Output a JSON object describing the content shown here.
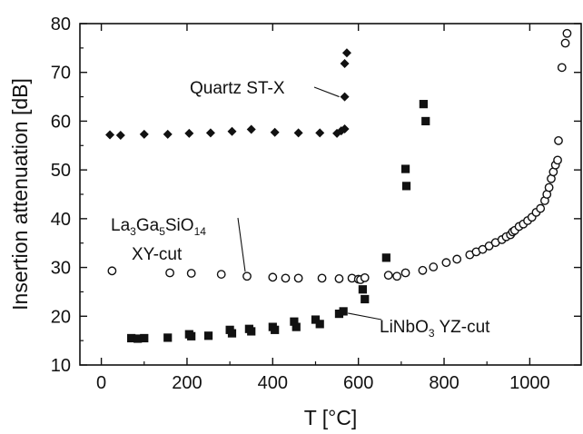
{
  "chart_data": {
    "type": "scatter",
    "xlabel": "T [°C]",
    "ylabel": "Insertion attenuation [dB]",
    "xlim": [
      -50,
      1120
    ],
    "ylim": [
      10,
      80
    ],
    "x_ticks": [
      0,
      200,
      400,
      600,
      800,
      1000
    ],
    "y_ticks": [
      10,
      20,
      30,
      40,
      50,
      60,
      70,
      80
    ],
    "grid": false,
    "legend": "none",
    "series": [
      {
        "marker": "diamond",
        "fill": "filled",
        "color": "#111111",
        "points": [
          [
            20,
            57.2
          ],
          [
            45,
            57.1
          ],
          [
            100,
            57.3
          ],
          [
            155,
            57.3
          ],
          [
            205,
            57.5
          ],
          [
            255,
            57.6
          ],
          [
            305,
            57.9
          ],
          [
            350,
            58.3
          ],
          [
            405,
            57.7
          ],
          [
            460,
            57.6
          ],
          [
            510,
            57.6
          ],
          [
            550,
            57.5
          ],
          [
            560,
            58.0
          ],
          [
            568,
            58.4
          ],
          [
            568,
            65.0
          ],
          [
            568,
            71.8
          ],
          [
            573,
            74.0
          ]
        ]
      },
      {
        "marker": "circle",
        "fill": "open",
        "color": "#111111",
        "points": [
          [
            25,
            29.3
          ],
          [
            160,
            28.9
          ],
          [
            210,
            28.8
          ],
          [
            280,
            28.6
          ],
          [
            340,
            28.2
          ],
          [
            400,
            28.0
          ],
          [
            430,
            27.8
          ],
          [
            460,
            27.8
          ],
          [
            515,
            27.8
          ],
          [
            555,
            27.7
          ],
          [
            585,
            27.8
          ],
          [
            600,
            27.6
          ],
          [
            605,
            27.5
          ],
          [
            615,
            27.9
          ],
          [
            670,
            28.4
          ],
          [
            690,
            28.2
          ],
          [
            710,
            28.9
          ],
          [
            750,
            29.4
          ],
          [
            775,
            30.1
          ],
          [
            805,
            31.0
          ],
          [
            830,
            31.7
          ],
          [
            860,
            32.6
          ],
          [
            875,
            33.2
          ],
          [
            890,
            33.7
          ],
          [
            905,
            34.4
          ],
          [
            920,
            35.1
          ],
          [
            935,
            35.7
          ],
          [
            945,
            36.3
          ],
          [
            955,
            36.7
          ],
          [
            960,
            37.3
          ],
          [
            965,
            37.6
          ],
          [
            975,
            38.4
          ],
          [
            985,
            38.9
          ],
          [
            995,
            39.6
          ],
          [
            1005,
            40.3
          ],
          [
            1015,
            41.3
          ],
          [
            1025,
            42.1
          ],
          [
            1035,
            43.7
          ],
          [
            1040,
            45.0
          ],
          [
            1045,
            46.4
          ],
          [
            1050,
            48.2
          ],
          [
            1055,
            49.6
          ],
          [
            1060,
            51.0
          ],
          [
            1065,
            52.0
          ],
          [
            1067,
            56.0
          ],
          [
            1075,
            71.0
          ],
          [
            1083,
            76.0
          ],
          [
            1087,
            78.0
          ]
        ]
      },
      {
        "marker": "square",
        "fill": "filled",
        "color": "#111111",
        "points": [
          [
            70,
            15.5
          ],
          [
            85,
            15.4
          ],
          [
            100,
            15.5
          ],
          [
            155,
            15.6
          ],
          [
            205,
            16.3
          ],
          [
            210,
            15.9
          ],
          [
            250,
            16.0
          ],
          [
            300,
            17.2
          ],
          [
            305,
            16.5
          ],
          [
            345,
            17.4
          ],
          [
            350,
            16.9
          ],
          [
            400,
            17.8
          ],
          [
            405,
            17.2
          ],
          [
            450,
            18.9
          ],
          [
            455,
            17.8
          ],
          [
            500,
            19.3
          ],
          [
            510,
            18.4
          ],
          [
            555,
            20.5
          ],
          [
            565,
            21.0
          ],
          [
            610,
            25.5
          ],
          [
            615,
            23.5
          ],
          [
            665,
            32.0
          ],
          [
            710,
            50.2
          ],
          [
            712,
            46.7
          ],
          [
            752,
            63.5
          ],
          [
            757,
            60.0
          ]
        ]
      }
    ],
    "annotations": [
      {
        "text": "Quartz ST-X",
        "points_to": [
          568,
          65.0
        ]
      },
      {
        "text_main": "La",
        "sub1": "3",
        "text_mid1": "Ga",
        "sub2": "5",
        "text_mid2": "SiO",
        "sub3": "14",
        "line2": "XY-cut",
        "points_to": [
          340,
          28.2
        ]
      },
      {
        "text_main": "LiNbO",
        "sub1": "3",
        "text_rest": " YZ-cut",
        "points_to": [
          565,
          21.0
        ]
      }
    ]
  }
}
